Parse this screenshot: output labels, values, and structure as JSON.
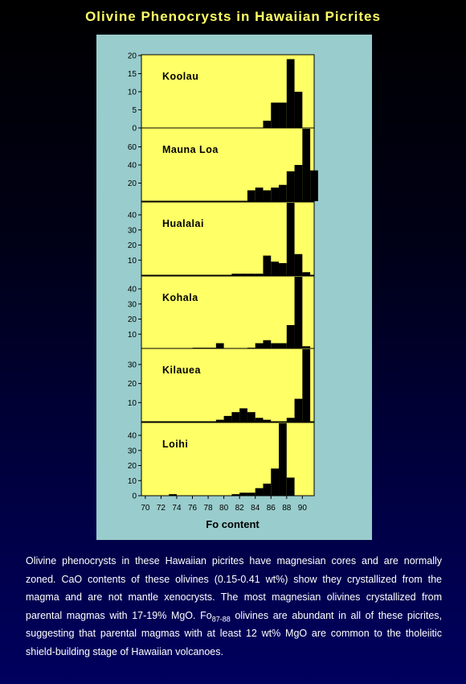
{
  "title": "Olivine Phenocrysts in Hawaiian Picrites",
  "colors": {
    "background_top": "#000000",
    "background_bottom": "#00005e",
    "title": "#ffff66",
    "panel": "#99cccc",
    "plot_area": "#ffff66",
    "bars": "#000000",
    "caption": "#ffffff"
  },
  "chart_data": {
    "type": "bar",
    "layout": "stacked panels sharing x axis",
    "xlabel": "Fo  content",
    "xlim": [
      69.5,
      91.5
    ],
    "x_ticks": [
      70,
      72,
      74,
      76,
      78,
      80,
      82,
      84,
      86,
      88,
      90
    ],
    "bin_starts": [
      70,
      71,
      72,
      73,
      74,
      75,
      76,
      77,
      78,
      79,
      80,
      81,
      82,
      83,
      84,
      85,
      86,
      87,
      88,
      89,
      90,
      91
    ],
    "panels": [
      {
        "name": "Koolau",
        "ylim": [
          0,
          20
        ],
        "y_ticks": [
          0,
          5,
          10,
          15,
          20
        ],
        "values": [
          0,
          0,
          0,
          0,
          0,
          0,
          0,
          0,
          0,
          0,
          0,
          0,
          0,
          0,
          0,
          2,
          7,
          7,
          19,
          10,
          0,
          0
        ]
      },
      {
        "name": "Mauna Loa",
        "ylim": [
          0,
          80
        ],
        "y_ticks": [
          20,
          40,
          60
        ],
        "values": [
          0,
          0,
          0,
          0,
          0,
          0,
          0,
          0,
          0,
          0,
          0,
          0,
          0,
          12,
          15,
          12,
          15,
          18,
          33,
          40,
          80,
          34
        ]
      },
      {
        "name": "Hualalai",
        "ylim": [
          0,
          48
        ],
        "y_ticks": [
          10,
          20,
          30,
          40
        ],
        "values": [
          0,
          0,
          0,
          0,
          0,
          0,
          0,
          0,
          0,
          0,
          0,
          1,
          1,
          1,
          1,
          13,
          9,
          8,
          48,
          14,
          2,
          0
        ]
      },
      {
        "name": "Kohala",
        "ylim": [
          0,
          48
        ],
        "y_ticks": [
          10,
          20,
          30,
          40
        ],
        "values": [
          0,
          0,
          0,
          0,
          0,
          0,
          1,
          1,
          1,
          4,
          0,
          0,
          0,
          1,
          4,
          6,
          4,
          4,
          16,
          48,
          2,
          0
        ]
      },
      {
        "name": "Kilauea",
        "ylim": [
          0,
          38
        ],
        "y_ticks": [
          10,
          20,
          30
        ],
        "values": [
          0,
          0,
          0,
          0,
          0,
          0,
          0,
          0,
          0,
          1,
          3,
          5,
          7,
          5,
          2,
          1,
          0,
          0,
          2,
          12,
          38,
          0
        ]
      },
      {
        "name": "Loihi",
        "ylim": [
          0,
          48
        ],
        "y_ticks": [
          0,
          10,
          20,
          30,
          40
        ],
        "values": [
          0,
          0,
          0,
          1,
          0,
          0,
          0,
          0,
          0,
          0,
          0,
          1,
          2,
          2,
          5,
          8,
          18,
          48,
          12,
          0,
          0,
          0
        ]
      }
    ]
  },
  "caption": {
    "part1": "Olivine phenocrysts in these Hawaiian picrites have magnesian cores and are normally zoned. CaO contents of these olivines (0.15-0.41 wt%) show they crystallized from the magma and are not mantle xenocrysts. The most magnesian olivines crystallized from parental magmas with 17-19% MgO. Fo",
    "subscript": "87-88",
    "part2": " olivines are abundant in all of these picrites, suggesting that parental magmas with at least 12 wt% MgO are common to the tholeiitic shield-building stage of Hawaiian volcanoes."
  }
}
